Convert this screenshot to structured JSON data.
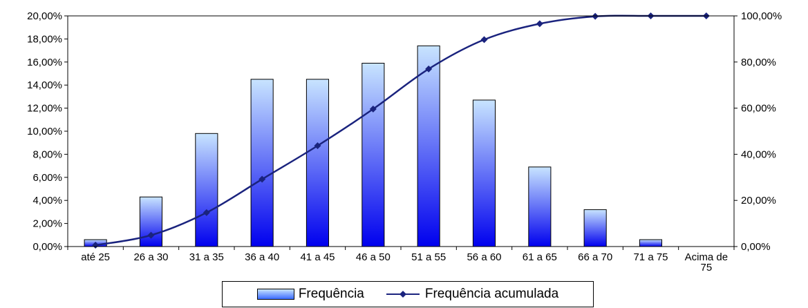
{
  "chart_data": {
    "type": "bar",
    "categories": [
      "até 25",
      "26 a 30",
      "31 a 35",
      "36 a 40",
      "41 a 45",
      "46 a 50",
      "51 a 55",
      "56 a 60",
      "61 a 65",
      "66 a 70",
      "71 a 75",
      "Acima de 75"
    ],
    "series": [
      {
        "name": "Frequência",
        "type": "bar",
        "axis": "left",
        "values": [
          0.6,
          4.3,
          9.8,
          14.5,
          14.5,
          15.9,
          17.4,
          12.7,
          6.9,
          3.2,
          0.6,
          0.0
        ]
      },
      {
        "name": "Frequência acumulada",
        "type": "line",
        "axis": "right",
        "values": [
          0.6,
          4.9,
          14.7,
          29.2,
          43.7,
          59.6,
          77.0,
          89.7,
          96.6,
          99.8,
          100.0,
          100.0
        ]
      }
    ],
    "ylim_left": [
      0,
      20
    ],
    "ylim_right": [
      0,
      100
    ],
    "yticks_left": [
      "0,00%",
      "2,00%",
      "4,00%",
      "6,00%",
      "8,00%",
      "10,00%",
      "12,00%",
      "14,00%",
      "16,00%",
      "18,00%",
      "20,00%"
    ],
    "yticks_right": [
      "0,00%",
      "20,00%",
      "40,00%",
      "60,00%",
      "80,00%",
      "100,00%"
    ],
    "xtick_labels": [
      [
        "até 25"
      ],
      [
        "26 a 30"
      ],
      [
        "31 a 35"
      ],
      [
        "36 a 40"
      ],
      [
        "41 a 45"
      ],
      [
        "46 a 50"
      ],
      [
        "51 a 55"
      ],
      [
        "56 a 60"
      ],
      [
        "61 a 65"
      ],
      [
        "66 a 70"
      ],
      [
        "71 a 75"
      ],
      [
        "Acima de",
        "75"
      ]
    ],
    "grid": false,
    "legend_position": "bottom",
    "colors": {
      "bar_top": "#c8e4ff",
      "bar_bottom": "#0000ee",
      "line": "#1a237e"
    }
  },
  "legend": {
    "bar_label": "Frequência",
    "line_label": "Frequência acumulada"
  }
}
